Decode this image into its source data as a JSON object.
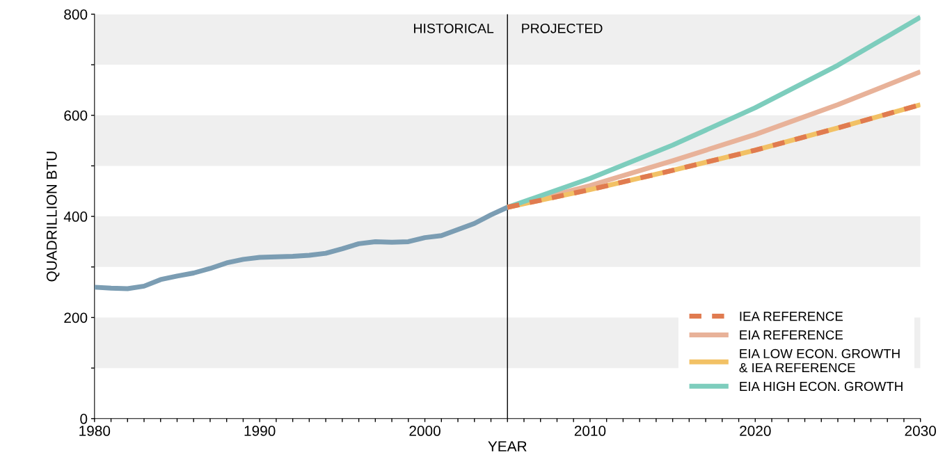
{
  "chart_data": {
    "type": "line",
    "xlabel": "YEAR",
    "ylabel": "QUADRILLION BTU",
    "xlim": [
      1980,
      2030
    ],
    "ylim": [
      0,
      800
    ],
    "xticks": [
      1980,
      {
        "value": 1981,
        "label": null
      },
      {
        "value": 1982,
        "label": null
      },
      {
        "value": 1983,
        "label": null
      },
      {
        "value": 1984,
        "label": null
      },
      {
        "value": 1985,
        "label": null
      },
      {
        "value": 1986,
        "label": null
      },
      {
        "value": 1987,
        "label": null
      },
      {
        "value": 1988,
        "label": null
      },
      {
        "value": 1989,
        "label": null
      },
      1990,
      {
        "value": 1991,
        "label": null
      },
      {
        "value": 1992,
        "label": null
      },
      {
        "value": 1993,
        "label": null
      },
      {
        "value": 1994,
        "label": null
      },
      {
        "value": 1995,
        "label": null
      },
      {
        "value": 1996,
        "label": null
      },
      {
        "value": 1997,
        "label": null
      },
      {
        "value": 1998,
        "label": null
      },
      {
        "value": 1999,
        "label": null
      },
      2000,
      {
        "value": 2001,
        "label": null
      },
      {
        "value": 2002,
        "label": null
      },
      {
        "value": 2003,
        "label": null
      },
      {
        "value": 2004,
        "label": null
      },
      {
        "value": 2005,
        "label": null
      },
      {
        "value": 2006,
        "label": null
      },
      {
        "value": 2007,
        "label": null
      },
      {
        "value": 2008,
        "label": null
      },
      {
        "value": 2009,
        "label": null
      },
      2010,
      {
        "value": 2011,
        "label": null
      },
      {
        "value": 2012,
        "label": null
      },
      {
        "value": 2013,
        "label": null
      },
      {
        "value": 2014,
        "label": null
      },
      {
        "value": 2015,
        "label": null
      },
      {
        "value": 2016,
        "label": null
      },
      {
        "value": 2017,
        "label": null
      },
      {
        "value": 2018,
        "label": null
      },
      {
        "value": 2019,
        "label": null
      },
      2020,
      {
        "value": 2021,
        "label": null
      },
      {
        "value": 2022,
        "label": null
      },
      {
        "value": 2023,
        "label": null
      },
      {
        "value": 2024,
        "label": null
      },
      {
        "value": 2025,
        "label": null
      },
      {
        "value": 2026,
        "label": null
      },
      {
        "value": 2027,
        "label": null
      },
      {
        "value": 2028,
        "label": null
      },
      {
        "value": 2029,
        "label": null
      },
      2030
    ],
    "yticks": [
      0,
      {
        "value": 100,
        "label": null
      },
      200,
      {
        "value": 300,
        "label": null
      },
      400,
      {
        "value": 500,
        "label": null
      },
      600,
      {
        "value": 700,
        "label": null
      },
      800
    ],
    "grid": false,
    "legend": "bottom right",
    "bands": [
      {
        "axis": "y",
        "from": 100,
        "to": 200,
        "color": "#efefef"
      },
      {
        "axis": "y",
        "from": 300,
        "to": 400,
        "color": "#efefef"
      },
      {
        "axis": "y",
        "from": 500,
        "to": 600,
        "color": "#efefef"
      },
      {
        "axis": "y",
        "from": 700,
        "to": 800,
        "color": "#efefef"
      }
    ],
    "ref_lines": [
      {
        "axis": "x",
        "value": 2005,
        "color": "#000000"
      }
    ],
    "annotations": [
      "HISTORICAL",
      "PROJECTED"
    ],
    "series": [
      {
        "color": "#7b9db3",
        "line_style": "solid",
        "x": [
          1980,
          1981,
          1982,
          1983,
          1984,
          1985,
          1986,
          1987,
          1988,
          1989,
          1990,
          1991,
          1992,
          1993,
          1994,
          1995,
          1996,
          1997,
          1998,
          1999,
          2000,
          2001,
          2002,
          2003,
          2004,
          2005
        ],
        "values": [
          260,
          258,
          257,
          262,
          275,
          282,
          288,
          297,
          308,
          315,
          319,
          320,
          321,
          323,
          327,
          336,
          346,
          350,
          349,
          350,
          358,
          362,
          374,
          386,
          403,
          418
        ]
      },
      {
        "name": "IEA REFERENCE",
        "color": "#e07b50",
        "line_style": "dashed",
        "x": [
          2005,
          2010,
          2015,
          2020,
          2025,
          2030
        ],
        "values": [
          418,
          453,
          491,
          531,
          575,
          621
        ]
      },
      {
        "name": "EIA REFERENCE",
        "color": "#e8b299",
        "line_style": "solid",
        "x": [
          2005,
          2010,
          2015,
          2020,
          2025,
          2030
        ],
        "values": [
          418,
          461,
          510,
          562,
          621,
          686
        ]
      },
      {
        "name": "EIA LOW ECON. GROWTH\n& IEA REFERENCE",
        "color": "#f2c165",
        "line_style": "solid",
        "x": [
          2005,
          2010,
          2015,
          2020,
          2025,
          2030
        ],
        "values": [
          418,
          453,
          491,
          531,
          575,
          621
        ]
      },
      {
        "name": "EIA HIGH ECON. GROWTH",
        "color": "#7dcdbd",
        "line_style": "solid",
        "x": [
          2005,
          2010,
          2015,
          2020,
          2025,
          2030
        ],
        "values": [
          418,
          475,
          541,
          615,
          699,
          794
        ]
      }
    ]
  }
}
